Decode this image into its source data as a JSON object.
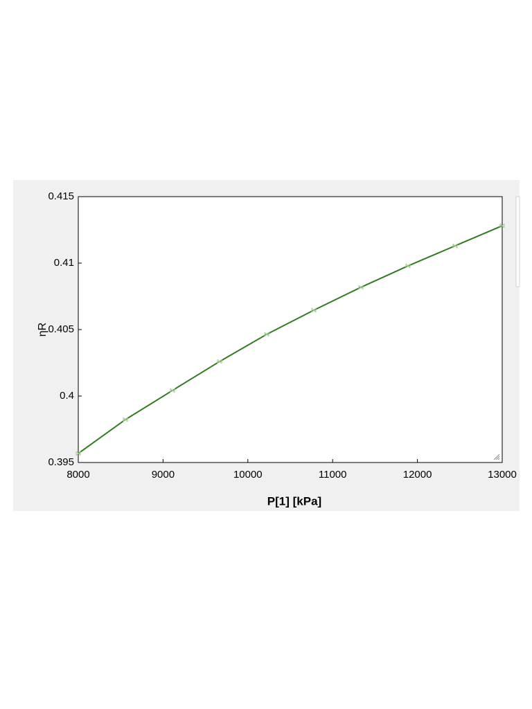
{
  "chart_data": {
    "type": "line",
    "x_label": "P[1]  [kPa]",
    "y_label": "ηR",
    "x": [
      8000,
      8556,
      9111,
      9667,
      10222,
      10778,
      11333,
      11889,
      12444,
      13000
    ],
    "values": [
      0.39568,
      0.39823,
      0.40042,
      0.4026,
      0.40464,
      0.40646,
      0.40818,
      0.40979,
      0.4113,
      0.41281
    ],
    "color": "#2f7d1f",
    "xlim": [
      8000,
      13000
    ],
    "xticks": [
      8000,
      9000,
      10000,
      11000,
      12000,
      13000
    ],
    "ylim": [
      0.395,
      0.415
    ],
    "yticks": [
      0.395,
      0.4,
      0.405,
      0.41,
      0.415
    ]
  }
}
